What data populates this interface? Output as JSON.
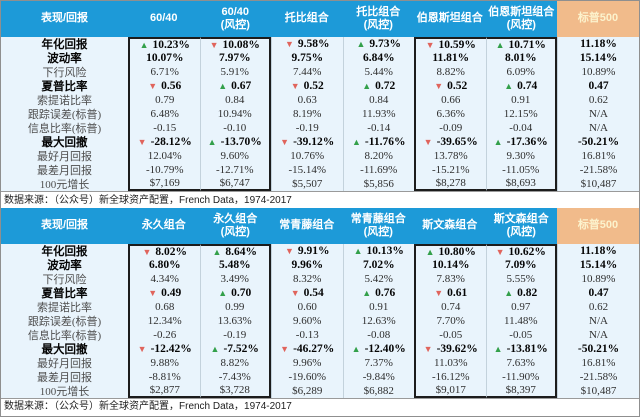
{
  "colors": {
    "header_bg": "#1d9ad8",
    "sp_header_bg": "#f1bb8b",
    "sp_header_text": "#fcf3cd",
    "body_bg": "#e9f4fc",
    "up_arrow": "#33a04a",
    "down_arrow": "#e0645c"
  },
  "chart_data": [
    {
      "type": "table",
      "title_col": "表现/回报",
      "columns": [
        {
          "label": "60/40",
          "sub": ""
        },
        {
          "label": "60/40",
          "sub": "(风控)"
        },
        {
          "label": "托比组合",
          "sub": ""
        },
        {
          "label": "托比组合",
          "sub": "(风控)"
        },
        {
          "label": "伯恩斯坦组合",
          "sub": ""
        },
        {
          "label": "伯恩斯坦组合",
          "sub": "(风控)"
        },
        {
          "label": "标普500",
          "sub": "",
          "highlight": true
        }
      ],
      "boxed_pairs": [
        [
          0,
          1
        ],
        [
          4,
          5
        ]
      ],
      "rows": [
        {
          "label": "年化回报",
          "bold": true,
          "cells": [
            {
              "v": "10.23%",
              "a": "up"
            },
            {
              "v": "10.08%",
              "a": "down"
            },
            {
              "v": "9.58%",
              "a": "down"
            },
            {
              "v": "9.73%",
              "a": "up"
            },
            {
              "v": "10.59%",
              "a": "down"
            },
            {
              "v": "10.71%",
              "a": "up"
            },
            {
              "v": "11.18%"
            }
          ]
        },
        {
          "label": "波动率",
          "bold": true,
          "cells": [
            {
              "v": "10.07%"
            },
            {
              "v": "7.97%"
            },
            {
              "v": "9.75%"
            },
            {
              "v": "6.84%"
            },
            {
              "v": "11.81%"
            },
            {
              "v": "8.01%"
            },
            {
              "v": "15.14%"
            }
          ]
        },
        {
          "label": "下行风险",
          "bold": false,
          "cells": [
            {
              "v": "6.71%"
            },
            {
              "v": "5.91%"
            },
            {
              "v": "7.44%"
            },
            {
              "v": "5.44%"
            },
            {
              "v": "8.82%"
            },
            {
              "v": "6.09%"
            },
            {
              "v": "10.89%"
            }
          ]
        },
        {
          "label": "夏普比率",
          "bold": true,
          "cells": [
            {
              "v": "0.56",
              "a": "down"
            },
            {
              "v": "0.67",
              "a": "up"
            },
            {
              "v": "0.52",
              "a": "down"
            },
            {
              "v": "0.72",
              "a": "up"
            },
            {
              "v": "0.52",
              "a": "down"
            },
            {
              "v": "0.74",
              "a": "up"
            },
            {
              "v": "0.47"
            }
          ]
        },
        {
          "label": "索提诺比率",
          "bold": false,
          "cells": [
            {
              "v": "0.79"
            },
            {
              "v": "0.84"
            },
            {
              "v": "0.63"
            },
            {
              "v": "0.84"
            },
            {
              "v": "0.66"
            },
            {
              "v": "0.91"
            },
            {
              "v": "0.62"
            }
          ]
        },
        {
          "label": "跟踪误差(标普)",
          "bold": false,
          "cells": [
            {
              "v": "6.48%"
            },
            {
              "v": "10.94%"
            },
            {
              "v": "8.19%"
            },
            {
              "v": "11.93%"
            },
            {
              "v": "6.36%"
            },
            {
              "v": "12.15%"
            },
            {
              "v": "N/A"
            }
          ]
        },
        {
          "label": "信息比率(标普)",
          "bold": false,
          "cells": [
            {
              "v": "-0.15"
            },
            {
              "v": "-0.10"
            },
            {
              "v": "-0.19"
            },
            {
              "v": "-0.14"
            },
            {
              "v": "-0.09"
            },
            {
              "v": "-0.04"
            },
            {
              "v": "N/A"
            }
          ]
        },
        {
          "label": "最大回撤",
          "bold": true,
          "cells": [
            {
              "v": "-28.12%",
              "a": "down"
            },
            {
              "v": "-13.70%",
              "a": "up"
            },
            {
              "v": "-39.12%",
              "a": "down"
            },
            {
              "v": "-11.76%",
              "a": "up"
            },
            {
              "v": "-39.65%",
              "a": "down"
            },
            {
              "v": "-17.36%",
              "a": "up"
            },
            {
              "v": "-50.21%"
            }
          ]
        },
        {
          "label": "最好月回报",
          "bold": false,
          "cells": [
            {
              "v": "12.04%"
            },
            {
              "v": "9.60%"
            },
            {
              "v": "10.76%"
            },
            {
              "v": "8.20%"
            },
            {
              "v": "13.78%"
            },
            {
              "v": "9.30%"
            },
            {
              "v": "16.81%"
            }
          ]
        },
        {
          "label": "最差月回报",
          "bold": false,
          "cells": [
            {
              "v": "-10.79%"
            },
            {
              "v": "-12.71%"
            },
            {
              "v": "-15.14%"
            },
            {
              "v": "-11.69%"
            },
            {
              "v": "-15.21%"
            },
            {
              "v": "-11.05%"
            },
            {
              "v": "-21.58%"
            }
          ]
        },
        {
          "label": "100元增长",
          "bold": false,
          "cells": [
            {
              "v": "$7,169"
            },
            {
              "v": "$6,747"
            },
            {
              "v": "$5,507"
            },
            {
              "v": "$5,856"
            },
            {
              "v": "$8,278"
            },
            {
              "v": "$8,693"
            },
            {
              "v": "$10,487"
            }
          ]
        }
      ],
      "source": "数据来源：（公众号）新全球资产配置，French Data，1974-2017"
    },
    {
      "type": "table",
      "title_col": "表现/回报",
      "columns": [
        {
          "label": "永久组合",
          "sub": ""
        },
        {
          "label": "永久组合",
          "sub": "(风控)"
        },
        {
          "label": "常青藤组合",
          "sub": ""
        },
        {
          "label": "常青藤组合",
          "sub": "(风控)"
        },
        {
          "label": "斯文森组合",
          "sub": ""
        },
        {
          "label": "斯文森组合",
          "sub": "(风控)"
        },
        {
          "label": "标普500",
          "sub": "",
          "highlight": true
        }
      ],
      "boxed_pairs": [
        [
          0,
          1
        ],
        [
          4,
          5
        ]
      ],
      "rows": [
        {
          "label": "年化回报",
          "bold": true,
          "cells": [
            {
              "v": "8.02%",
              "a": "down"
            },
            {
              "v": "8.64%",
              "a": "up"
            },
            {
              "v": "9.91%",
              "a": "down"
            },
            {
              "v": "10.13%",
              "a": "up"
            },
            {
              "v": "10.80%",
              "a": "up"
            },
            {
              "v": "10.62%",
              "a": "down"
            },
            {
              "v": "11.18%"
            }
          ]
        },
        {
          "label": "波动率",
          "bold": true,
          "cells": [
            {
              "v": "6.80%"
            },
            {
              "v": "5.48%"
            },
            {
              "v": "9.96%"
            },
            {
              "v": "7.02%"
            },
            {
              "v": "10.14%"
            },
            {
              "v": "7.09%"
            },
            {
              "v": "15.14%"
            }
          ]
        },
        {
          "label": "下行风险",
          "bold": false,
          "cells": [
            {
              "v": "4.34%"
            },
            {
              "v": "3.49%"
            },
            {
              "v": "8.32%"
            },
            {
              "v": "5.42%"
            },
            {
              "v": "7.83%"
            },
            {
              "v": "5.55%"
            },
            {
              "v": "10.89%"
            }
          ]
        },
        {
          "label": "夏普比率",
          "bold": true,
          "cells": [
            {
              "v": "0.49",
              "a": "down"
            },
            {
              "v": "0.70",
              "a": "up"
            },
            {
              "v": "0.54",
              "a": "down"
            },
            {
              "v": "0.76",
              "a": "up"
            },
            {
              "v": "0.61",
              "a": "down"
            },
            {
              "v": "0.82",
              "a": "up"
            },
            {
              "v": "0.47"
            }
          ]
        },
        {
          "label": "索提诺比率",
          "bold": false,
          "cells": [
            {
              "v": "0.68"
            },
            {
              "v": "0.99"
            },
            {
              "v": "0.60"
            },
            {
              "v": "0.91"
            },
            {
              "v": "0.74"
            },
            {
              "v": "0.97"
            },
            {
              "v": "0.62"
            }
          ]
        },
        {
          "label": "跟踪误差(标普)",
          "bold": false,
          "cells": [
            {
              "v": "12.34%"
            },
            {
              "v": "13.63%"
            },
            {
              "v": "9.60%"
            },
            {
              "v": "12.63%"
            },
            {
              "v": "7.70%"
            },
            {
              "v": "11.48%"
            },
            {
              "v": "N/A"
            }
          ]
        },
        {
          "label": "信息比率(标普)",
          "bold": false,
          "cells": [
            {
              "v": "-0.26"
            },
            {
              "v": "-0.19"
            },
            {
              "v": "-0.13"
            },
            {
              "v": "-0.08"
            },
            {
              "v": "-0.05"
            },
            {
              "v": "-0.05"
            },
            {
              "v": "N/A"
            }
          ]
        },
        {
          "label": "最大回撤",
          "bold": true,
          "cells": [
            {
              "v": "-12.42%",
              "a": "down"
            },
            {
              "v": "-7.52%",
              "a": "up"
            },
            {
              "v": "-46.27%",
              "a": "down"
            },
            {
              "v": "-12.40%",
              "a": "up"
            },
            {
              "v": "-39.62%",
              "a": "down"
            },
            {
              "v": "-13.81%",
              "a": "up"
            },
            {
              "v": "-50.21%"
            }
          ]
        },
        {
          "label": "最好月回报",
          "bold": false,
          "cells": [
            {
              "v": "9.88%"
            },
            {
              "v": "8.82%"
            },
            {
              "v": "9.96%"
            },
            {
              "v": "7.37%"
            },
            {
              "v": "11.03%"
            },
            {
              "v": "7.63%"
            },
            {
              "v": "16.81%"
            }
          ]
        },
        {
          "label": "最差月回报",
          "bold": false,
          "cells": [
            {
              "v": "-8.81%"
            },
            {
              "v": "-7.43%"
            },
            {
              "v": "-19.60%"
            },
            {
              "v": "-9.84%"
            },
            {
              "v": "-16.12%"
            },
            {
              "v": "-11.90%"
            },
            {
              "v": "-21.58%"
            }
          ]
        },
        {
          "label": "100元增长",
          "bold": false,
          "cells": [
            {
              "v": "$2,877"
            },
            {
              "v": "$3,728"
            },
            {
              "v": "$6,289"
            },
            {
              "v": "$6,882"
            },
            {
              "v": "$9,017"
            },
            {
              "v": "$8,397"
            },
            {
              "v": "$10,487"
            }
          ]
        }
      ],
      "source": "数据来源：（公众号）新全球资产配置，French Data，1974-2017"
    }
  ]
}
